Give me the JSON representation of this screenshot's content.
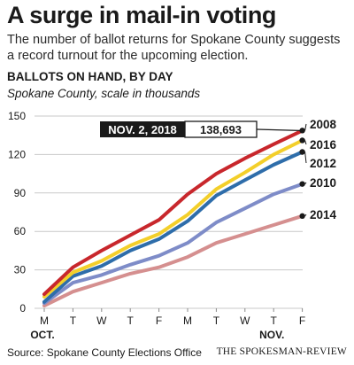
{
  "headline": "A surge in mail-in voting",
  "dek": "The number of ballot returns for Spokane County suggests a record turnout for the upcoming election.",
  "source": "Source: Spokane County Elections Office",
  "credit": "THE SPOKESMAN-REVIEW",
  "chart_data": {
    "type": "line",
    "title": "BALLOTS ON HAND, BY DAY",
    "subtitle": "Spokane County, scale in thousands",
    "categories": [
      "M",
      "T",
      "W",
      "T",
      "F",
      "M",
      "T",
      "W",
      "T",
      "F"
    ],
    "group_labels": [
      {
        "label": "OCT.",
        "index": 0
      },
      {
        "label": "NOV.",
        "index": 8
      }
    ],
    "ylim": [
      0,
      150
    ],
    "yticks": [
      0,
      30,
      60,
      90,
      120,
      150
    ],
    "grid": true,
    "legend": "direct labels at right",
    "series": [
      {
        "name": "2014",
        "color": "#d58f8f",
        "values": [
          2,
          13,
          20,
          27,
          32,
          40,
          51,
          58,
          65,
          72
        ]
      },
      {
        "name": "2010",
        "color": "#7e8cc8",
        "values": [
          4,
          20,
          26,
          34,
          41,
          51,
          67,
          78,
          89,
          97
        ]
      },
      {
        "name": "2012",
        "color": "#2e6daa",
        "values": [
          5,
          25,
          33,
          45,
          54,
          68,
          88,
          100,
          112,
          122
        ]
      },
      {
        "name": "2016",
        "color": "#f3cf2a",
        "values": [
          9,
          28,
          37,
          49,
          58,
          73,
          93,
          106,
          120,
          131
        ]
      },
      {
        "name": "2008",
        "color": "#c8272c",
        "values": [
          11,
          32,
          45,
          57,
          69,
          89,
          105,
          117,
          128,
          138.693
        ]
      }
    ],
    "annotation": {
      "label": "NOV. 2, 2018",
      "value": "138,693",
      "series": "2008",
      "index": 9
    }
  }
}
